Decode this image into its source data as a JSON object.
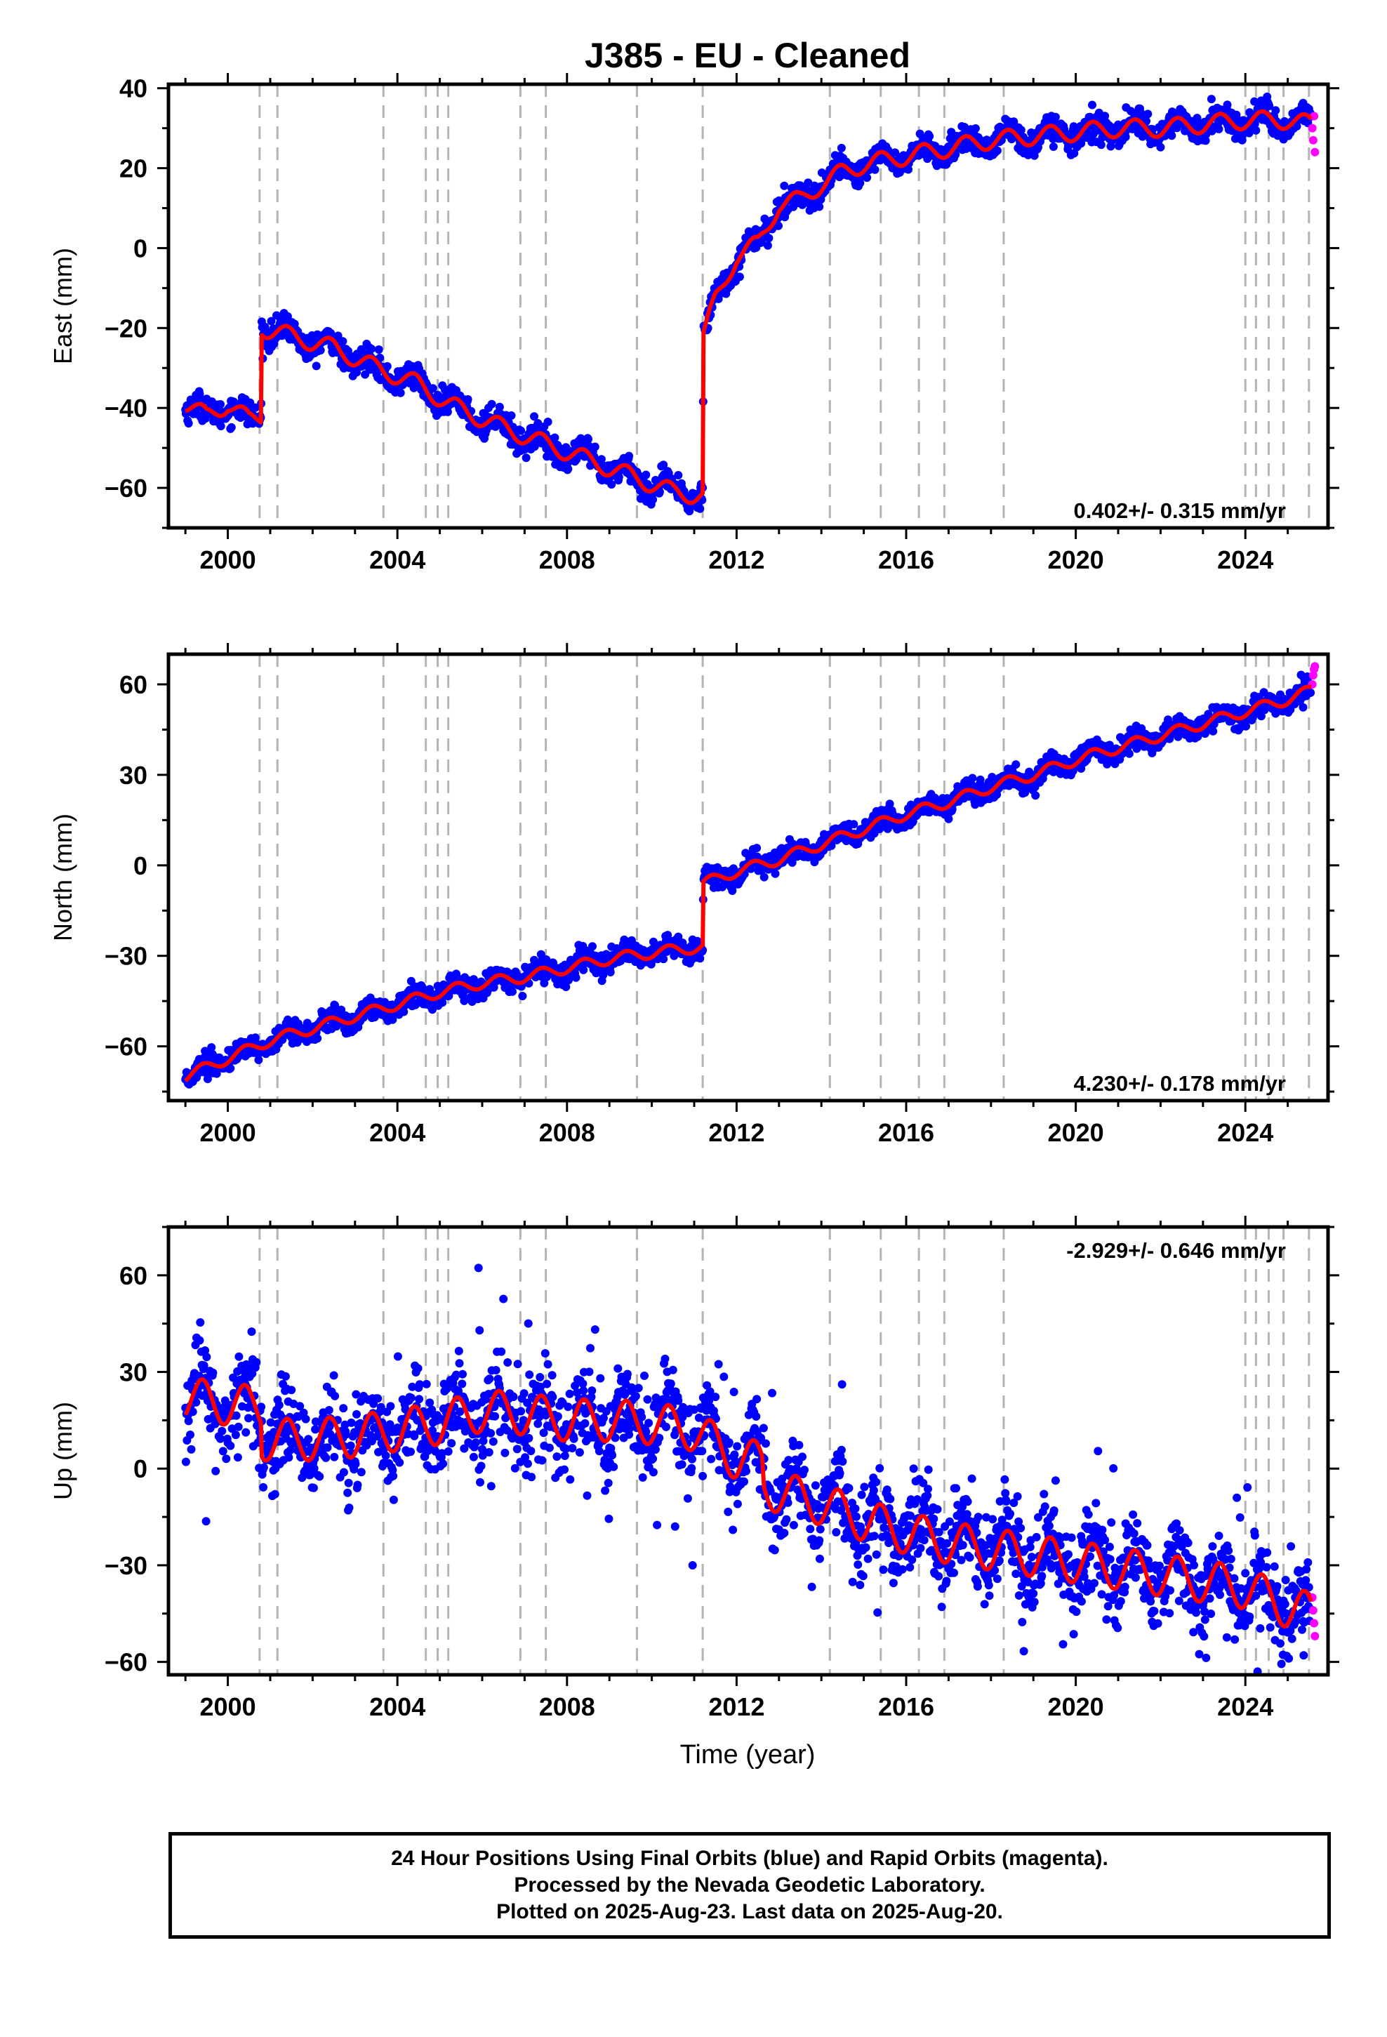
{
  "title": "J385  - EU - Cleaned",
  "xlabel": "Time (year)",
  "caption": {
    "line1": "24 Hour Positions Using Final Orbits (blue) and Rapid Orbits (magenta).",
    "line2": "Processed by the Nevada Geodetic Laboratory.",
    "line3": "Plotted on 2025-Aug-23. Last data on 2025-Aug-20."
  },
  "colors": {
    "final": "#0000ff",
    "rapid": "#ff00ff",
    "model": "#ff0000",
    "steps": "#b4b4b4"
  },
  "chart_data": [
    {
      "type": "scatter",
      "component": "East",
      "ylabel": "East (mm)",
      "rate_label": "0.402+/- 0.315 mm/yr",
      "xlim": [
        1998.6,
        2025.95
      ],
      "ylim": [
        -70,
        41
      ],
      "xticks": [
        2000,
        2004,
        2008,
        2012,
        2016,
        2020,
        2024
      ],
      "yticks": [
        -60,
        -40,
        -20,
        0,
        20,
        40
      ],
      "grid": false,
      "series": [
        {
          "name": "Final Orbits (blue)",
          "x": [
            1999.0,
            1999.5,
            2000.0,
            2000.5,
            2000.78,
            2000.8,
            2001.5,
            2002.5,
            2003.5,
            2004.5,
            2005.2,
            2006.5,
            2007.5,
            2008.5,
            2009.5,
            2010.5,
            2011.2,
            2011.22,
            2011.5,
            2012.0,
            2012.5,
            2013.0,
            2013.5,
            2014.0,
            2014.5,
            2015.0,
            2016.0,
            2017.0,
            2018.0,
            2019.0,
            2020.0,
            2021.0,
            2022.0,
            2023.0,
            2024.0,
            2025.0,
            2025.55
          ],
          "y": [
            -39,
            -42,
            -39,
            -43,
            -42,
            -20,
            -22,
            -25,
            -30,
            -34,
            -39,
            -45,
            -49,
            -53,
            -57,
            -61,
            -62,
            -22,
            -13,
            -2,
            1,
            11,
            12,
            16,
            19,
            21,
            23,
            25,
            27,
            28,
            29,
            30,
            30,
            31,
            32,
            32,
            31
          ]
        },
        {
          "name": "Rapid Orbits (magenta)",
          "x": [
            2025.58,
            2025.6,
            2025.62,
            2025.64
          ],
          "y": [
            30,
            27,
            33,
            24
          ]
        }
      ],
      "step_epochs": [
        2000.75,
        2001.17,
        2003.67,
        2004.67,
        2004.95,
        2005.2,
        2006.9,
        2007.5,
        2009.65,
        2011.2,
        2014.2,
        2015.4,
        2016.3,
        2016.9,
        2018.3,
        2024.0,
        2024.25,
        2024.55,
        2024.9,
        2025.5
      ]
    },
    {
      "type": "scatter",
      "component": "North",
      "ylabel": "North (mm)",
      "rate_label": "4.230+/- 0.178 mm/yr",
      "xlim": [
        1998.6,
        2025.95
      ],
      "ylim": [
        -78,
        70
      ],
      "xticks": [
        2000,
        2004,
        2008,
        2012,
        2016,
        2020,
        2024
      ],
      "yticks": [
        -60,
        -30,
        0,
        30,
        60
      ],
      "grid": false,
      "series": [
        {
          "name": "Final Orbits (blue)",
          "x": [
            1999.0,
            2000.0,
            2001.0,
            2002.0,
            2003.0,
            2004.0,
            2005.0,
            2006.0,
            2007.0,
            2008.0,
            2009.0,
            2010.0,
            2011.2,
            2011.22,
            2012.0,
            2013.0,
            2014.0,
            2015.0,
            2016.0,
            2017.0,
            2018.0,
            2019.0,
            2020.0,
            2021.0,
            2022.0,
            2023.0,
            2024.0,
            2025.0,
            2025.55
          ],
          "y": [
            -70,
            -64,
            -58,
            -54,
            -50,
            -46,
            -42,
            -39,
            -37,
            -34,
            -31,
            -29,
            -27,
            -6,
            -2,
            2,
            7,
            12,
            17,
            21,
            26,
            30,
            35,
            39,
            43,
            47,
            51,
            55,
            58
          ]
        },
        {
          "name": "Rapid Orbits (magenta)",
          "x": [
            2025.58,
            2025.6,
            2025.62,
            2025.64
          ],
          "y": [
            60,
            63,
            65,
            66
          ]
        }
      ],
      "step_epochs": [
        2000.75,
        2001.17,
        2003.67,
        2004.67,
        2004.95,
        2005.2,
        2006.9,
        2007.5,
        2009.65,
        2011.2,
        2014.2,
        2015.4,
        2016.3,
        2016.9,
        2018.3,
        2024.0,
        2024.25,
        2024.55,
        2024.9,
        2025.5
      ]
    },
    {
      "type": "scatter",
      "component": "Up",
      "ylabel": "Up (mm)",
      "rate_label": "-2.929+/- 0.646 mm/yr",
      "xlim": [
        1998.6,
        2025.95
      ],
      "ylim": [
        -64,
        75
      ],
      "xticks": [
        2000,
        2004,
        2008,
        2012,
        2016,
        2020,
        2024
      ],
      "yticks": [
        -60,
        -30,
        0,
        30,
        60
      ],
      "grid": false,
      "series": [
        {
          "name": "Final Orbits (blue)",
          "x": [
            1999.0,
            2000.0,
            2000.78,
            2000.8,
            2002.0,
            2003.0,
            2004.0,
            2005.0,
            2006.0,
            2007.0,
            2008.0,
            2009.0,
            2010.0,
            2011.0,
            2012.0,
            2012.6,
            2012.65,
            2014.0,
            2015.0,
            2016.0,
            2017.0,
            2018.0,
            2019.0,
            2020.0,
            2021.0,
            2022.0,
            2023.0,
            2024.0,
            2025.0,
            2025.55
          ],
          "y": [
            22,
            20,
            19,
            9,
            9,
            10,
            12,
            14,
            18,
            17,
            15,
            15,
            14,
            12,
            3,
            2,
            -6,
            -11,
            -16,
            -20,
            -23,
            -25,
            -27,
            -29,
            -31,
            -33,
            -35,
            -37,
            -43,
            -45
          ]
        },
        {
          "name": "Rapid Orbits (magenta)",
          "x": [
            2025.58,
            2025.6,
            2025.62,
            2025.64
          ],
          "y": [
            -40,
            -44,
            -48,
            -52
          ]
        }
      ],
      "step_epochs": [
        2000.75,
        2001.17,
        2003.67,
        2004.67,
        2004.95,
        2005.2,
        2006.9,
        2007.5,
        2009.65,
        2011.2,
        2014.2,
        2015.4,
        2016.3,
        2016.9,
        2018.3,
        2024.0,
        2024.25,
        2024.55,
        2024.9,
        2025.5
      ]
    }
  ]
}
